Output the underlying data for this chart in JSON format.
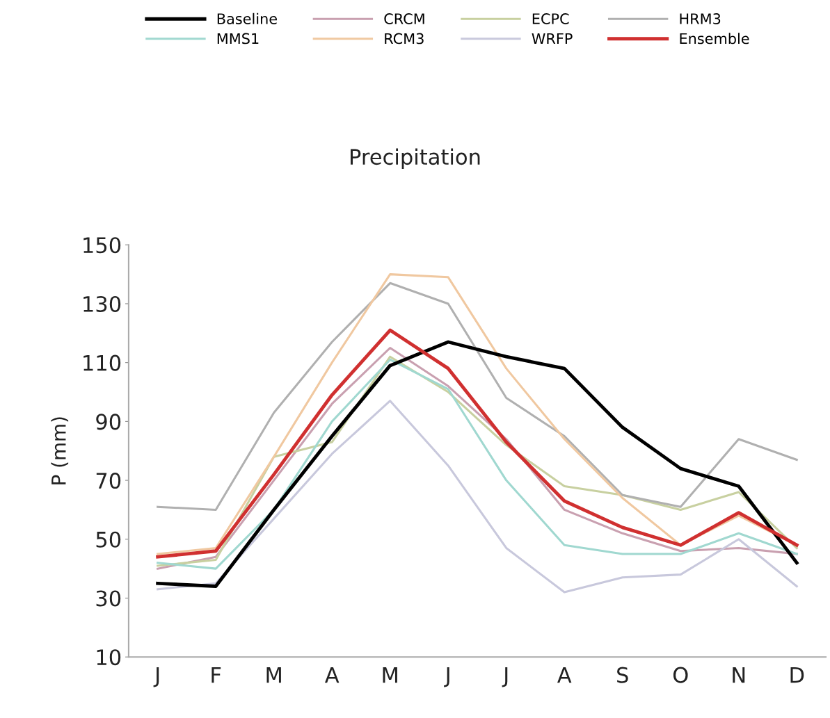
{
  "chart_data": {
    "type": "line",
    "title": "Precipitation",
    "ylabel": "P (mm)",
    "categories": [
      "J",
      "F",
      "M",
      "A",
      "M",
      "J",
      "J",
      "A",
      "S",
      "O",
      "N",
      "D"
    ],
    "ylim": [
      10,
      150
    ],
    "yticks": [
      10,
      30,
      50,
      70,
      90,
      110,
      130,
      150
    ],
    "grid": false,
    "legend": "top",
    "marker": "none",
    "line_style": "solid",
    "series": [
      {
        "name": "Baseline",
        "color": "#000000",
        "values": [
          35,
          34,
          60,
          85,
          109,
          117,
          112,
          108,
          88,
          74,
          68,
          42
        ]
      },
      {
        "name": "CRCM",
        "color": "#c9a0b0",
        "values": [
          40,
          44,
          70,
          96,
          115,
          102,
          84,
          60,
          52,
          46,
          47,
          45
        ]
      },
      {
        "name": "ECPC",
        "color": "#c8d0a0",
        "values": [
          41,
          43,
          78,
          83,
          112,
          100,
          82,
          68,
          65,
          60,
          66,
          47
        ]
      },
      {
        "name": "HRM3",
        "color": "#b0b0b0",
        "values": [
          61,
          60,
          93,
          117,
          137,
          130,
          98,
          85,
          65,
          61,
          84,
          77
        ]
      },
      {
        "name": "MMS1",
        "color": "#a0d8d0",
        "values": [
          42,
          40,
          60,
          90,
          111,
          101,
          70,
          48,
          45,
          45,
          52,
          45
        ]
      },
      {
        "name": "RCM3",
        "color": "#f0c8a0",
        "values": [
          45,
          47,
          78,
          110,
          140,
          139,
          108,
          84,
          64,
          48,
          58,
          48
        ]
      },
      {
        "name": "WRFP",
        "color": "#c8c8dc",
        "values": [
          33,
          35,
          57,
          79,
          97,
          75,
          47,
          32,
          37,
          38,
          50,
          34
        ]
      },
      {
        "name": "Ensemble",
        "color": "#d03030",
        "values": [
          44,
          46,
          72,
          99,
          121,
          108,
          83,
          63,
          54,
          48,
          59,
          48
        ]
      }
    ]
  }
}
